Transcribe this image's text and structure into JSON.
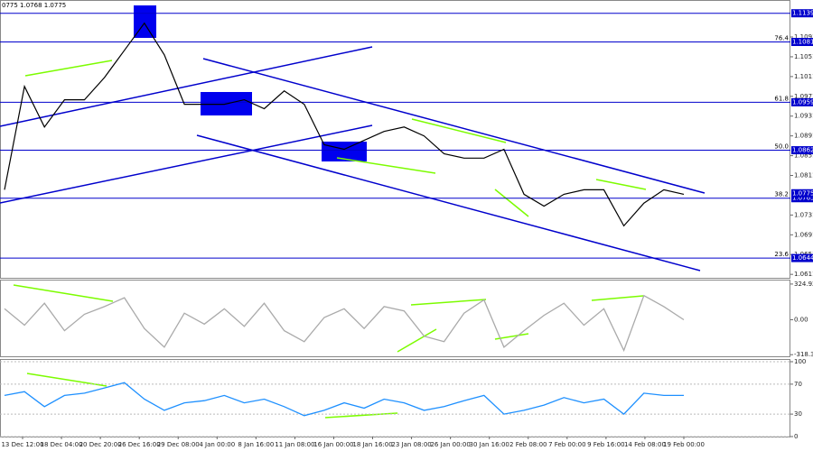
{
  "chart_data": [
    {
      "type": "line",
      "title": "0775 1.0768 1.0775",
      "color": "#000000",
      "values": [
        1.0782,
        1.0991,
        1.0909,
        1.0964,
        1.0964,
        1.1009,
        1.1064,
        1.1119,
        1.1055,
        1.0955,
        1.0955,
        1.0955,
        1.0964,
        1.0946,
        1.0982,
        1.0955,
        1.0873,
        1.0864,
        1.0882,
        1.09,
        1.0909,
        1.0891,
        1.0855,
        1.0846,
        1.0846,
        1.0864,
        1.0773,
        1.0749,
        1.0773,
        1.0782,
        1.0782,
        1.0709,
        1.0755,
        1.0782,
        1.0773
      ],
      "ylim": [
        1.0604,
        1.1164
      ],
      "yticks": [
        1.1091,
        1.1051,
        1.1011,
        1.0971,
        1.0931,
        1.0891,
        1.0851,
        1.0811,
        1.0731,
        1.0691,
        1.0651,
        1.0611
      ],
      "levels": [
        {
          "value": 1.1139
        },
        {
          "value": 1.1081,
          "label": "76.4"
        },
        {
          "value": 1.0959,
          "label": "61.8"
        },
        {
          "value": 1.0862,
          "label": "50.0"
        },
        {
          "value": 1.0765,
          "label": "38.2"
        },
        {
          "value": 1.0644,
          "label": "23.6"
        }
      ],
      "current": 1.0775,
      "level_color": "#0000cc"
    },
    {
      "type": "line",
      "color": "#aaaaaa",
      "values": [
        100,
        -50,
        150,
        -100,
        50,
        120,
        200,
        -80,
        -250,
        60,
        -40,
        100,
        -60,
        150,
        -100,
        -200,
        20,
        100,
        -80,
        120,
        80,
        -150,
        -200,
        60,
        180,
        -250,
        -100,
        40,
        150,
        -50,
        100,
        -280,
        220,
        120,
        0
      ],
      "ylim": [
        -333,
        357
      ],
      "yticks": [
        324.9243,
        {
          "value": 0,
          "label": "0.00"
        },
        -318.308
      ]
    },
    {
      "type": "line",
      "color": "#1e90ff",
      "values": [
        55,
        60,
        40,
        55,
        58,
        65,
        72,
        50,
        35,
        45,
        48,
        55,
        45,
        50,
        40,
        28,
        35,
        45,
        38,
        50,
        45,
        35,
        40,
        48,
        55,
        30,
        35,
        42,
        52,
        45,
        50,
        30,
        58,
        55,
        55
      ],
      "ylim": [
        0,
        100
      ],
      "yticks": [
        100,
        70,
        30,
        0
      ],
      "xticks": [
        "13 Dec 12:00",
        "18 Dec 04:00",
        "20 Dec 20:00",
        "26 Dec 16:00",
        "29 Dec 08:00",
        "4 Jan 00:00",
        "8 Jan 16:00",
        "11 Jan 08:00",
        "16 Jan 00:00",
        "18 Jan 16:00",
        "23 Jan 08:00",
        "26 Jan 00:00",
        "30 Jan 16:00",
        "2 Feb 08:00",
        "7 Feb 00:00",
        "9 Feb 16:00",
        "14 Feb 08:00",
        "19 Feb 00:00"
      ]
    }
  ]
}
